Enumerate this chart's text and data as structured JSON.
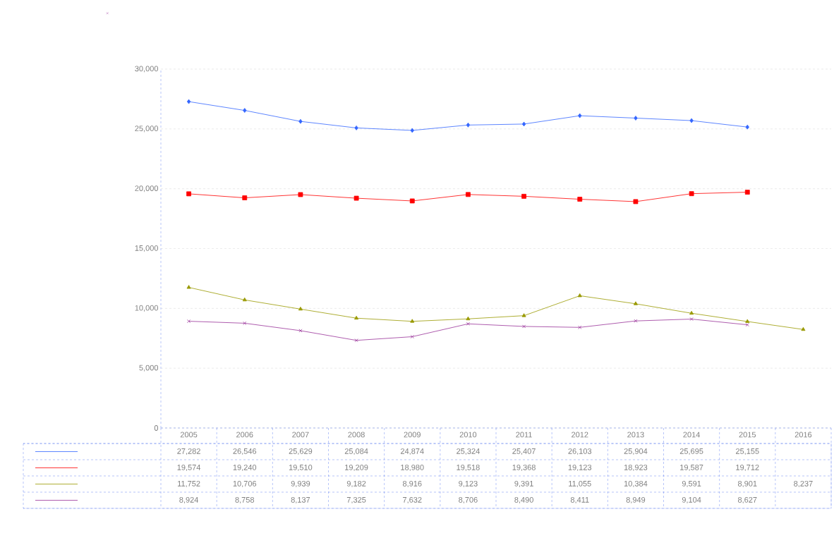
{
  "chart_data": {
    "type": "line",
    "categories": [
      "2005",
      "2006",
      "2007",
      "2008",
      "2009",
      "2010",
      "2011",
      "2012",
      "2013",
      "2014",
      "2015",
      "2016"
    ],
    "series": [
      {
        "color": "#3366ff",
        "marker": "diamond",
        "values": [
          27282,
          26546,
          25629,
          25084,
          24874,
          25324,
          25407,
          26103,
          25904,
          25695,
          25155,
          null
        ],
        "value_labels": [
          "27,282",
          "26,546",
          "25,629",
          "25,084",
          "24,874",
          "25,324",
          "25,407",
          "26,103",
          "25,904",
          "25,695",
          "25,155",
          null
        ]
      },
      {
        "color": "#ff0000",
        "marker": "square",
        "values": [
          19574,
          19240,
          19510,
          19209,
          18980,
          19518,
          19368,
          19123,
          18923,
          19587,
          19712,
          null
        ],
        "value_labels": [
          "19,574",
          "19,240",
          "19,510",
          "19,209",
          "18,980",
          "19,518",
          "19,368",
          "19,123",
          "18,923",
          "19,587",
          "19,712",
          null
        ]
      },
      {
        "color": "#999900",
        "marker": "triangle",
        "values": [
          11752,
          10706,
          9939,
          9182,
          8916,
          9123,
          9391,
          11055,
          10384,
          9591,
          8901,
          8237
        ],
        "value_labels": [
          "11,752",
          "10,706",
          "9,939",
          "9,182",
          "8,916",
          "9,123",
          "9,391",
          "11,055",
          "10,384",
          "9,591",
          "8,901",
          "8,237"
        ]
      },
      {
        "color": "#993399",
        "marker": "cross",
        "values": [
          8924,
          8758,
          8137,
          7325,
          7632,
          8706,
          8490,
          8411,
          8949,
          9104,
          8627,
          null
        ],
        "value_labels": [
          "8,924",
          "8,758",
          "8,137",
          "7,325",
          "7,632",
          "8,706",
          "8,490",
          "8,411",
          "8,949",
          "9,104",
          "8,627",
          null
        ]
      }
    ],
    "ylim": [
      0,
      30000
    ],
    "yticks": [
      {
        "value": 0,
        "label": "0"
      },
      {
        "value": 5000,
        "label": "5,000"
      },
      {
        "value": 10000,
        "label": "10,000"
      },
      {
        "value": 15000,
        "label": "15,000"
      },
      {
        "value": 20000,
        "label": "20,000"
      },
      {
        "value": 25000,
        "label": "25,000"
      },
      {
        "value": 30000,
        "label": "30,000"
      }
    ],
    "grid": "y"
  }
}
